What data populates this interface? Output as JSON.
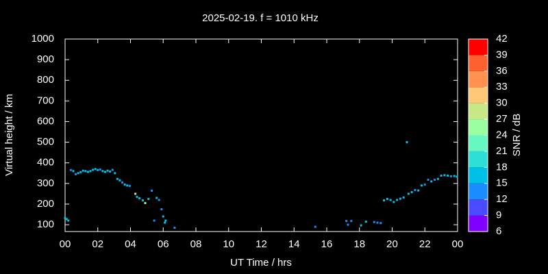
{
  "chart_data": {
    "type": "scatter",
    "title": "2025-02-19. f = 1010 kHz",
    "x_label": "UT Time / hrs",
    "y_label": "Virtual height / km",
    "x": [
      0.0,
      0.1,
      0.2,
      0.35,
      0.5,
      0.65,
      0.8,
      0.95,
      1.1,
      1.25,
      1.4,
      1.55,
      1.7,
      1.85,
      2.0,
      2.15,
      2.3,
      2.45,
      2.6,
      2.75,
      2.9,
      3.05,
      3.2,
      3.35,
      3.5,
      3.65,
      3.8,
      3.95,
      4.3,
      4.4,
      4.55,
      4.75,
      4.9,
      5.1,
      5.3,
      5.45,
      5.6,
      5.75,
      5.9,
      6.0,
      6.1,
      6.15,
      6.7,
      15.3,
      17.2,
      17.3,
      17.5,
      18.1,
      18.4,
      18.9,
      19.1,
      19.3,
      19.5,
      19.7,
      19.9,
      20.1,
      20.3,
      20.5,
      20.7,
      20.9,
      21.0,
      21.2,
      21.4,
      21.6,
      21.8,
      22.0,
      22.2,
      22.4,
      22.6,
      22.8,
      23.0,
      23.2,
      23.4,
      23.6,
      23.8,
      23.95
    ],
    "values": [
      133,
      127,
      120,
      365,
      360,
      345,
      350,
      355,
      362,
      360,
      356,
      360,
      366,
      370,
      365,
      368,
      360,
      356,
      362,
      358,
      366,
      350,
      322,
      315,
      305,
      295,
      290,
      288,
      250,
      235,
      228,
      218,
      205,
      225,
      265,
      120,
      230,
      220,
      175,
      140,
      110,
      120,
      85,
      90,
      118,
      100,
      118,
      97,
      115,
      113,
      110,
      108,
      218,
      225,
      220,
      210,
      220,
      226,
      232,
      500,
      250,
      258,
      268,
      266,
      290,
      295,
      318,
      310,
      318,
      322,
      338,
      340,
      338,
      335,
      336,
      333
    ],
    "snr": [
      17,
      16,
      17,
      13,
      16,
      13,
      16,
      16,
      16,
      16,
      17,
      16,
      17,
      16,
      16,
      13,
      16,
      16,
      17,
      16,
      13,
      16,
      16,
      16,
      13,
      16,
      16,
      13,
      27,
      16,
      16,
      16,
      24,
      16,
      13,
      13,
      16,
      13,
      13,
      16,
      16,
      16,
      13,
      13,
      13,
      13,
      13,
      16,
      16,
      13,
      13,
      13,
      16,
      16,
      16,
      16,
      16,
      16,
      16,
      17,
      16,
      16,
      13,
      16,
      16,
      13,
      13,
      16,
      13,
      16,
      16,
      16,
      16,
      13,
      16,
      16
    ],
    "xlim": [
      0,
      24
    ],
    "xticks": [
      {
        "value": 0,
        "label": "00"
      },
      {
        "value": 2,
        "label": "02"
      },
      {
        "value": 4,
        "label": "04"
      },
      {
        "value": 6,
        "label": "06"
      },
      {
        "value": 8,
        "label": "08"
      },
      10,
      12,
      14,
      16,
      18,
      20,
      22,
      {
        "value": 24,
        "label": "00"
      }
    ],
    "ylim": [
      67,
      1000
    ],
    "yticks": [
      100,
      200,
      300,
      400,
      500,
      600,
      700,
      800,
      900,
      1000
    ],
    "colorbar": {
      "label": "SNR / dB",
      "lim": [
        6,
        42
      ],
      "ticks": [
        6,
        9,
        12,
        15,
        18,
        21,
        24,
        27,
        30,
        33,
        36,
        39,
        42
      ],
      "colors": [
        "#8000ff",
        "#4a4aff",
        "#1a8cff",
        "#00c0e8",
        "#2ce0d8",
        "#66f8c0",
        "#99ffa0",
        "#c8e888",
        "#ffc878",
        "#ff9050",
        "#ff6030",
        "#ff0000"
      ]
    }
  }
}
